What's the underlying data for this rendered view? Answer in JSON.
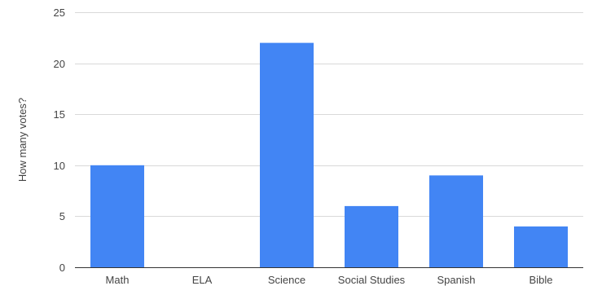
{
  "chart_data": {
    "type": "bar",
    "categories": [
      "Math",
      "ELA",
      "Science",
      "Social Studies",
      "Spanish",
      "Bible"
    ],
    "series": [
      {
        "values": [
          10,
          0,
          22,
          6,
          9,
          4
        ]
      }
    ],
    "ylabel": "How many votes?",
    "xlabel": "",
    "ylim": [
      0,
      25
    ],
    "yticks": [
      0,
      5,
      10,
      15,
      20,
      25
    ],
    "grid": true,
    "legend": "none",
    "bar_color": "#4285f4"
  }
}
